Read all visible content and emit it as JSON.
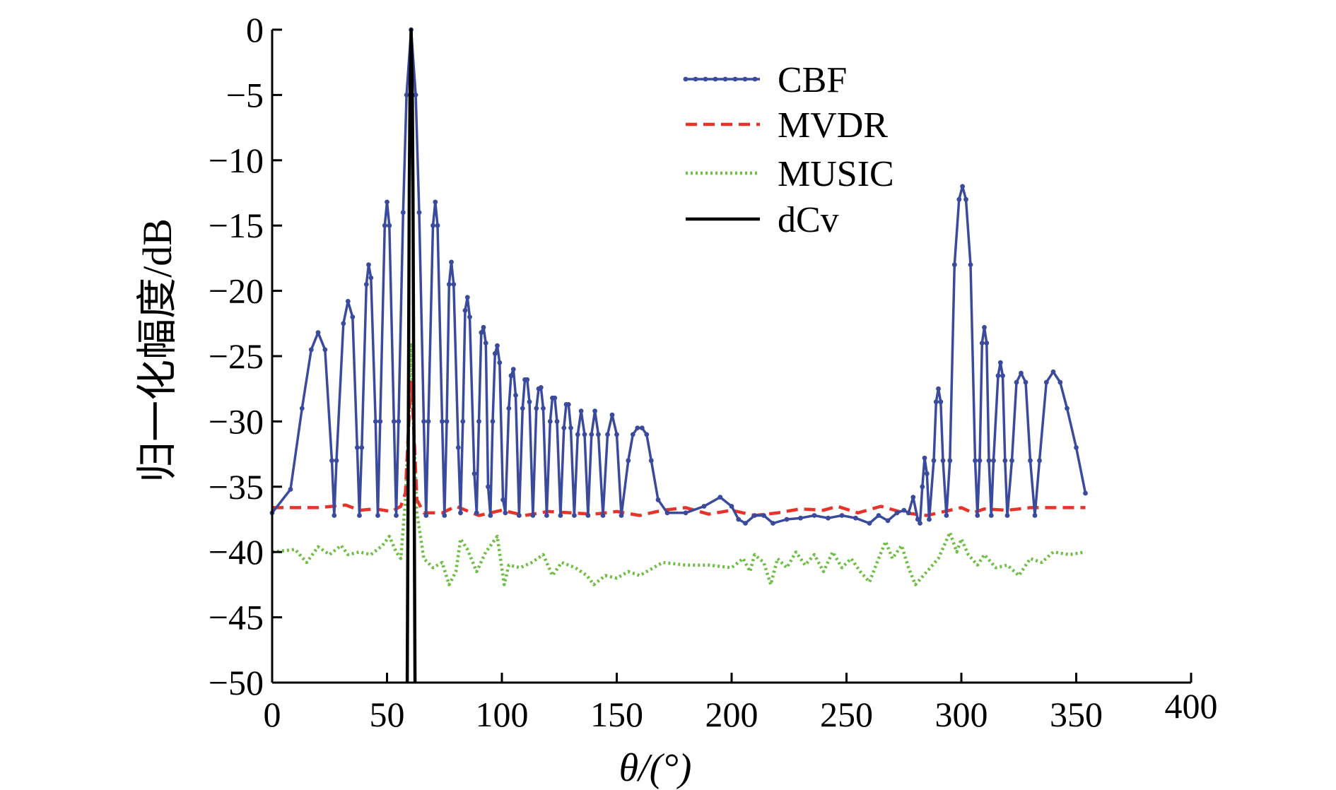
{
  "chart_data": {
    "type": "line",
    "title": "",
    "xlabel": "θ/(°)",
    "ylabel": "归一化幅度/dB",
    "xlim": [
      0,
      400
    ],
    "ylim": [
      -50,
      0
    ],
    "xticks": [
      0,
      50,
      100,
      150,
      200,
      250,
      300,
      350,
      400
    ],
    "yticks": [
      0,
      -5,
      -10,
      -15,
      -20,
      -25,
      -30,
      -35,
      -40,
      -45,
      -50
    ],
    "grid": false,
    "legend_position": "top-right",
    "series": [
      {
        "name": "CBF",
        "color": "#3a4a9c",
        "style": "solid-dotted-markers",
        "points": [
          [
            0,
            -37
          ],
          [
            8,
            -35.2
          ],
          [
            13,
            -29
          ],
          [
            17,
            -24.5
          ],
          [
            20,
            -23.2
          ],
          [
            23,
            -24.5
          ],
          [
            26,
            -33
          ],
          [
            27,
            -37.2
          ],
          [
            28,
            -33
          ],
          [
            31,
            -22.5
          ],
          [
            33,
            -20.8
          ],
          [
            35,
            -22
          ],
          [
            37,
            -32
          ],
          [
            38,
            -37.2
          ],
          [
            39,
            -32
          ],
          [
            41,
            -19.5
          ],
          [
            42,
            -18
          ],
          [
            43,
            -19
          ],
          [
            45,
            -30
          ],
          [
            46,
            -37.2
          ],
          [
            47,
            -30
          ],
          [
            49,
            -15
          ],
          [
            50,
            -13.2
          ],
          [
            51,
            -15
          ],
          [
            53,
            -30
          ],
          [
            54,
            -37.2
          ],
          [
            55,
            -30
          ],
          [
            57,
            -14
          ],
          [
            58.5,
            -5
          ],
          [
            60.5,
            0
          ],
          [
            62.5,
            -5
          ],
          [
            64,
            -14
          ],
          [
            66,
            -30
          ],
          [
            67,
            -37.2
          ],
          [
            68,
            -30
          ],
          [
            70,
            -15
          ],
          [
            71,
            -13.2
          ],
          [
            72,
            -15
          ],
          [
            74,
            -30
          ],
          [
            75,
            -37.2
          ],
          [
            76,
            -30
          ],
          [
            77,
            -19.5
          ],
          [
            78,
            -17.8
          ],
          [
            79,
            -19.5
          ],
          [
            81,
            -32
          ],
          [
            82,
            -37
          ],
          [
            83,
            -30
          ],
          [
            84,
            -21.5
          ],
          [
            85,
            -20.5
          ],
          [
            86,
            -22
          ],
          [
            88,
            -34
          ],
          [
            89,
            -37
          ],
          [
            90,
            -30
          ],
          [
            91,
            -23.2
          ],
          [
            92,
            -22.8
          ],
          [
            93,
            -24
          ],
          [
            94,
            -35
          ],
          [
            95,
            -37.2
          ],
          [
            96,
            -30
          ],
          [
            97,
            -24.8
          ],
          [
            98,
            -24.2
          ],
          [
            99,
            -25.5
          ],
          [
            100.5,
            -36
          ],
          [
            101.5,
            -37
          ],
          [
            103,
            -29
          ],
          [
            104,
            -26.5
          ],
          [
            105,
            -26
          ],
          [
            106,
            -28
          ],
          [
            107.5,
            -37.2
          ],
          [
            109,
            -29
          ],
          [
            110,
            -26.8
          ],
          [
            111,
            -26.8
          ],
          [
            112,
            -28.5
          ],
          [
            113.5,
            -37.2
          ],
          [
            115,
            -29
          ],
          [
            116,
            -27.5
          ],
          [
            117,
            -27.4
          ],
          [
            118,
            -29
          ],
          [
            119.5,
            -37.2
          ],
          [
            121,
            -30
          ],
          [
            122,
            -28.2
          ],
          [
            123,
            -28.2
          ],
          [
            124,
            -30
          ],
          [
            125.5,
            -37.2
          ],
          [
            127,
            -30.5
          ],
          [
            128,
            -28.7
          ],
          [
            129,
            -28.7
          ],
          [
            130,
            -30.5
          ],
          [
            131.5,
            -37.2
          ],
          [
            133,
            -31
          ],
          [
            134.5,
            -29.2
          ],
          [
            136,
            -31
          ],
          [
            137.5,
            -37.2
          ],
          [
            139,
            -31
          ],
          [
            140.5,
            -29.2
          ],
          [
            142,
            -31
          ],
          [
            144,
            -37.2
          ],
          [
            146,
            -31
          ],
          [
            148,
            -29.5
          ],
          [
            150,
            -31
          ],
          [
            152,
            -37.2
          ],
          [
            155,
            -33
          ],
          [
            157,
            -31
          ],
          [
            159,
            -30.5
          ],
          [
            161,
            -30.5
          ],
          [
            163,
            -31
          ],
          [
            165,
            -33
          ],
          [
            168,
            -36
          ],
          [
            172,
            -37
          ],
          [
            180,
            -37
          ],
          [
            188,
            -36.5
          ],
          [
            195,
            -35.8
          ],
          [
            200,
            -36.5
          ],
          [
            203,
            -37.5
          ],
          [
            206,
            -37.8
          ],
          [
            210,
            -37.2
          ],
          [
            214,
            -37.2
          ],
          [
            218,
            -37.8
          ],
          [
            224,
            -37.5
          ],
          [
            230,
            -37.4
          ],
          [
            236,
            -37.2
          ],
          [
            242,
            -37.4
          ],
          [
            248,
            -37.2
          ],
          [
            254,
            -37.4
          ],
          [
            260,
            -37.8
          ],
          [
            264,
            -37.2
          ],
          [
            268,
            -37.6
          ],
          [
            272,
            -37
          ],
          [
            275,
            -36.8
          ],
          [
            277,
            -37
          ],
          [
            279,
            -35.8
          ],
          [
            281,
            -37.5
          ],
          [
            282,
            -37.8
          ],
          [
            283,
            -35
          ],
          [
            284,
            -32.8
          ],
          [
            285,
            -34
          ],
          [
            286,
            -37.5
          ],
          [
            288,
            -33
          ],
          [
            289,
            -28.5
          ],
          [
            290,
            -27.5
          ],
          [
            291,
            -28.5
          ],
          [
            292,
            -33
          ],
          [
            293.5,
            -37.2
          ],
          [
            295,
            -33
          ],
          [
            297,
            -18
          ],
          [
            299,
            -13
          ],
          [
            300.5,
            -12
          ],
          [
            302,
            -13
          ],
          [
            304,
            -18
          ],
          [
            306,
            -33
          ],
          [
            307,
            -37.2
          ],
          [
            308,
            -33
          ],
          [
            309,
            -24
          ],
          [
            310,
            -22.8
          ],
          [
            311,
            -24
          ],
          [
            312,
            -33
          ],
          [
            313,
            -37.2
          ],
          [
            314,
            -33
          ],
          [
            316,
            -26.5
          ],
          [
            317,
            -25.5
          ],
          [
            318,
            -26.5
          ],
          [
            319,
            -33
          ],
          [
            320,
            -37.2
          ],
          [
            322,
            -33
          ],
          [
            324,
            -27
          ],
          [
            326,
            -26.3
          ],
          [
            328,
            -27
          ],
          [
            330,
            -33
          ],
          [
            332,
            -37.2
          ],
          [
            334,
            -33
          ],
          [
            337,
            -27
          ],
          [
            340,
            -26.2
          ],
          [
            343,
            -27
          ],
          [
            346,
            -29
          ],
          [
            350,
            -32
          ],
          [
            354,
            -35.5
          ]
        ]
      },
      {
        "name": "MVDR",
        "color": "#e8332a",
        "style": "dashed",
        "points": [
          [
            0,
            -36.6
          ],
          [
            20,
            -36.6
          ],
          [
            32,
            -36.4
          ],
          [
            38,
            -36.8
          ],
          [
            45,
            -36.7
          ],
          [
            52,
            -36.9
          ],
          [
            56,
            -36.5
          ],
          [
            58,
            -35.5
          ],
          [
            59.5,
            -30
          ],
          [
            60.5,
            -27
          ],
          [
            61.5,
            -30
          ],
          [
            63,
            -36
          ],
          [
            66,
            -37
          ],
          [
            74,
            -37
          ],
          [
            80,
            -36.5
          ],
          [
            90,
            -37.2
          ],
          [
            100,
            -36.8
          ],
          [
            110,
            -37.2
          ],
          [
            120,
            -36.9
          ],
          [
            130,
            -37
          ],
          [
            140,
            -37.1
          ],
          [
            150,
            -36.9
          ],
          [
            160,
            -37.2
          ],
          [
            170,
            -36.8
          ],
          [
            180,
            -36.6
          ],
          [
            190,
            -37.1
          ],
          [
            200,
            -36.8
          ],
          [
            210,
            -37.2
          ],
          [
            220,
            -37
          ],
          [
            230,
            -36.7
          ],
          [
            240,
            -36.8
          ],
          [
            246,
            -36.5
          ],
          [
            255,
            -37
          ],
          [
            265,
            -36.5
          ],
          [
            275,
            -37
          ],
          [
            285,
            -37.2
          ],
          [
            295,
            -36.8
          ],
          [
            300,
            -36.6
          ],
          [
            305,
            -37
          ],
          [
            310,
            -36.7
          ],
          [
            320,
            -36.8
          ],
          [
            330,
            -36.6
          ],
          [
            340,
            -36.6
          ],
          [
            354,
            -36.6
          ]
        ]
      },
      {
        "name": "MUSIC",
        "color": "#6fbe44",
        "style": "dotted",
        "points": [
          [
            0,
            -40
          ],
          [
            10,
            -39.8
          ],
          [
            15,
            -40.8
          ],
          [
            20,
            -39.6
          ],
          [
            25,
            -40.2
          ],
          [
            30,
            -39.5
          ],
          [
            33,
            -40.2
          ],
          [
            38,
            -40
          ],
          [
            43,
            -40.2
          ],
          [
            48,
            -39.5
          ],
          [
            51,
            -38.8
          ],
          [
            54,
            -40
          ],
          [
            56,
            -40.5
          ],
          [
            58,
            -36
          ],
          [
            59.5,
            -30
          ],
          [
            60.5,
            -24
          ],
          [
            61.5,
            -30
          ],
          [
            63,
            -37
          ],
          [
            66,
            -40.5
          ],
          [
            70,
            -41.2
          ],
          [
            74,
            -40.8
          ],
          [
            77,
            -42.5
          ],
          [
            80,
            -41.5
          ],
          [
            82,
            -39
          ],
          [
            85,
            -39.8
          ],
          [
            89,
            -41.5
          ],
          [
            93,
            -40
          ],
          [
            98,
            -38.8
          ],
          [
            101,
            -42.5
          ],
          [
            103,
            -41
          ],
          [
            108,
            -41.2
          ],
          [
            113,
            -40.8
          ],
          [
            118,
            -40.2
          ],
          [
            122,
            -41.8
          ],
          [
            126,
            -40.8
          ],
          [
            132,
            -41.2
          ],
          [
            137,
            -41.8
          ],
          [
            140,
            -42.5
          ],
          [
            145,
            -41.8
          ],
          [
            150,
            -42
          ],
          [
            155,
            -41.5
          ],
          [
            160,
            -41.8
          ],
          [
            170,
            -40.8
          ],
          [
            180,
            -41
          ],
          [
            190,
            -41
          ],
          [
            200,
            -41.2
          ],
          [
            205,
            -40.5
          ],
          [
            208,
            -41.5
          ],
          [
            210,
            -40.2
          ],
          [
            214,
            -40.8
          ],
          [
            217,
            -42.5
          ],
          [
            220,
            -40.5
          ],
          [
            224,
            -41.2
          ],
          [
            228,
            -40
          ],
          [
            232,
            -41
          ],
          [
            236,
            -40.2
          ],
          [
            240,
            -41.5
          ],
          [
            244,
            -40
          ],
          [
            248,
            -41.2
          ],
          [
            252,
            -40.5
          ],
          [
            256,
            -41.5
          ],
          [
            260,
            -42.3
          ],
          [
            264,
            -40.5
          ],
          [
            267,
            -39.2
          ],
          [
            270,
            -40.5
          ],
          [
            274,
            -39.5
          ],
          [
            277,
            -41.2
          ],
          [
            280,
            -42.5
          ],
          [
            285,
            -41.5
          ],
          [
            290,
            -40.5
          ],
          [
            295,
            -38.5
          ],
          [
            298,
            -40
          ],
          [
            300,
            -39
          ],
          [
            303,
            -40.2
          ],
          [
            307,
            -41
          ],
          [
            310,
            -40.2
          ],
          [
            315,
            -41.2
          ],
          [
            320,
            -41
          ],
          [
            325,
            -41.8
          ],
          [
            330,
            -40.5
          ],
          [
            335,
            -40.8
          ],
          [
            340,
            -40
          ],
          [
            347,
            -40.2
          ],
          [
            354,
            -40
          ]
        ]
      },
      {
        "name": "dCv",
        "color": "#000000",
        "style": "solid",
        "points": [
          [
            58.8,
            -50
          ],
          [
            59.3,
            -30
          ],
          [
            59.7,
            -12
          ],
          [
            60,
            -5
          ],
          [
            60.3,
            -2
          ],
          [
            60.5,
            0
          ],
          [
            60.7,
            -2
          ],
          [
            61,
            -5
          ],
          [
            61.3,
            -12
          ],
          [
            61.7,
            -30
          ],
          [
            62.2,
            -50
          ]
        ]
      }
    ]
  }
}
